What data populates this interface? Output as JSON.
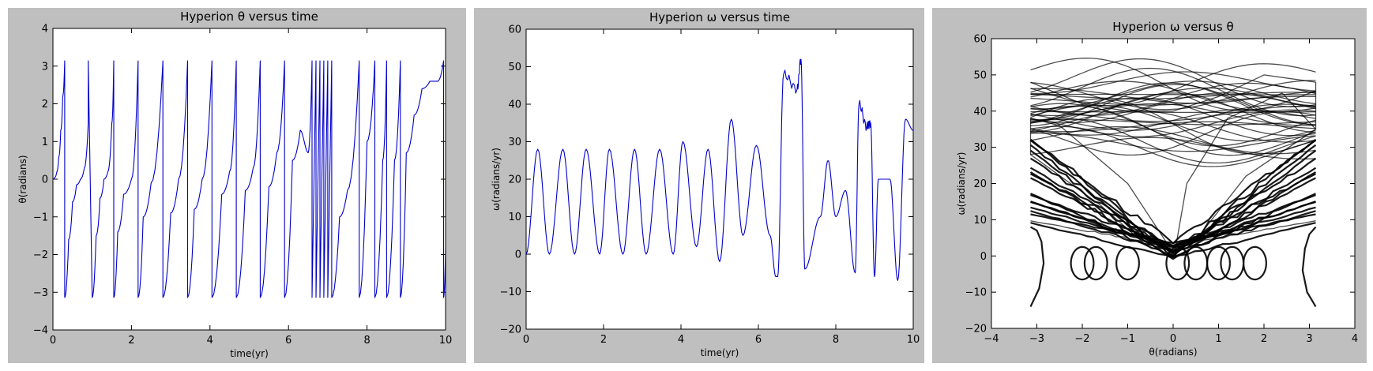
{
  "figure": {
    "background": "#ffffff",
    "panel_color": "#bfbfbf"
  },
  "chart_data": [
    {
      "id": "theta-time",
      "type": "line",
      "title": "Hyperion θ versus time",
      "xlabel": "time(yr)",
      "ylabel": "θ(radians)",
      "xlim": [
        0,
        10
      ],
      "ylim": [
        -4,
        4
      ],
      "xticks": [
        0,
        2,
        4,
        6,
        8,
        10
      ],
      "yticks": [
        -4,
        -3,
        -2,
        -1,
        0,
        1,
        2,
        3,
        4
      ],
      "grid": false,
      "line_color": "#0000cc",
      "model": "theta",
      "series": [
        {
          "x": [
            0,
            0.05,
            0.1,
            0.15,
            0.2,
            0.25,
            0.3,
            0.3,
            0.4,
            0.5,
            0.6,
            0.7,
            0.8,
            0.9,
            0.9,
            1.0,
            1.1,
            1.2,
            1.3,
            1.4,
            1.5,
            1.55,
            1.55,
            1.65,
            1.8,
            2.0,
            2.17,
            2.17,
            2.3,
            2.5,
            2.8,
            2.8,
            3.0,
            3.2,
            3.43,
            3.43,
            3.6,
            3.8,
            4.05,
            4.05,
            4.3,
            4.5,
            4.67,
            4.67,
            4.9,
            5.1,
            5.28,
            5.28,
            5.5,
            5.7,
            5.9,
            5.9,
            6.1,
            6.3,
            6.5,
            6.6,
            6.6,
            6.7,
            6.7,
            6.8,
            6.8,
            6.9,
            6.9,
            7.0,
            7.0,
            7.1,
            7.1,
            7.3,
            7.5,
            7.8,
            7.8,
            8.0,
            8.2,
            8.2,
            8.4,
            8.5,
            8.5,
            8.7,
            8.85,
            8.85,
            9.0,
            9.2,
            9.4,
            9.6,
            9.8,
            9.95,
            9.95,
            10.0
          ],
          "y": [
            0,
            0.05,
            0.2,
            0.6,
            1.3,
            2.2,
            3.14,
            -3.14,
            -1.6,
            -0.6,
            -0.15,
            0,
            0.3,
            1.5,
            3.14,
            -3.14,
            -1.5,
            -0.5,
            0,
            0.2,
            1.5,
            3.14,
            -3.14,
            -1.4,
            -0.4,
            0,
            3.14,
            -3.14,
            -1.0,
            -0.1,
            3.14,
            -3.14,
            -0.9,
            0,
            3.14,
            -3.14,
            -0.8,
            0,
            3.14,
            -3.14,
            -0.4,
            0.2,
            3.14,
            -3.14,
            -0.3,
            0.3,
            3.14,
            -3.14,
            -0.2,
            0.7,
            3.14,
            -3.14,
            0.5,
            1.3,
            0.7,
            3.14,
            -3.14,
            3.14,
            -3.14,
            3.14,
            -3.14,
            3.14,
            -3.14,
            3.14,
            -3.14,
            3.14,
            -3.14,
            -1.0,
            -0.3,
            3.14,
            -3.14,
            1.0,
            3.14,
            -3.14,
            0.5,
            3.14,
            -3.14,
            0.5,
            3.14,
            -3.14,
            0.7,
            1.7,
            2.4,
            2.6,
            2.6,
            3.14,
            -3.14,
            -1.8
          ]
        }
      ]
    },
    {
      "id": "omega-time",
      "type": "line",
      "title": "Hyperion ω versus time",
      "xlabel": "time(yr)",
      "ylabel": "ω(radians/yr)",
      "xlim": [
        0,
        10
      ],
      "ylim": [
        -20,
        60
      ],
      "xticks": [
        0,
        2,
        4,
        6,
        8,
        10
      ],
      "yticks": [
        -20,
        -10,
        0,
        10,
        20,
        30,
        40,
        50,
        60
      ],
      "grid": false,
      "line_color": "#0000cc",
      "model": "omega",
      "series": [
        {
          "x": [
            0,
            0.3,
            0.6,
            0.95,
            1.25,
            1.55,
            1.9,
            2.15,
            2.5,
            2.8,
            3.1,
            3.45,
            3.8,
            4.05,
            4.4,
            4.7,
            5.0,
            5.3,
            5.6,
            5.95,
            6.3,
            6.45,
            6.5,
            6.65,
            7.0,
            7.1,
            7.2,
            7.6,
            7.8,
            8.0,
            8.25,
            8.5,
            8.6,
            8.8,
            8.9,
            9.0,
            9.1,
            9.4,
            9.6,
            9.8,
            10.0
          ],
          "y": [
            0,
            28,
            0,
            28,
            0,
            28,
            0,
            28,
            0,
            28,
            0,
            28,
            0,
            30,
            2,
            28,
            -2,
            36,
            5,
            29,
            5,
            -6,
            -6,
            48,
            44,
            52,
            -4,
            10,
            25,
            10,
            17,
            -5,
            40,
            34,
            35,
            -6,
            20,
            20,
            -7,
            36,
            33
          ]
        }
      ]
    },
    {
      "id": "omega-theta",
      "type": "line",
      "title": "Hyperion ω versus θ",
      "xlabel": "θ(radians)",
      "ylabel": "ω(radians/yr)",
      "xlim": [
        -4,
        4
      ],
      "ylim": [
        -20,
        60
      ],
      "xticks": [
        -4,
        -3,
        -2,
        -1,
        0,
        1,
        2,
        3,
        4
      ],
      "yticks": [
        -20,
        -10,
        0,
        10,
        20,
        30,
        40,
        50,
        60
      ],
      "grid": false,
      "line_color": "#000000",
      "model": "phase",
      "series": [
        {
          "x": [
            -3.14,
            -2.0,
            -1.0,
            0,
            1.0,
            2.0,
            3.14,
            3.14,
            2.4,
            1.2,
            0.3,
            0.05,
            0.05,
            -1.0,
            -2.5,
            -3.14,
            -3.14,
            -1.6,
            -0.6,
            0,
            0.6,
            1.6,
            3.14
          ],
          "y": [
            48,
            42,
            40,
            40,
            44,
            50,
            48,
            35,
            45,
            38,
            20,
            2,
            0,
            20,
            36,
            38,
            28,
            14,
            3,
            0,
            6,
            22,
            35
          ]
        }
      ]
    }
  ]
}
